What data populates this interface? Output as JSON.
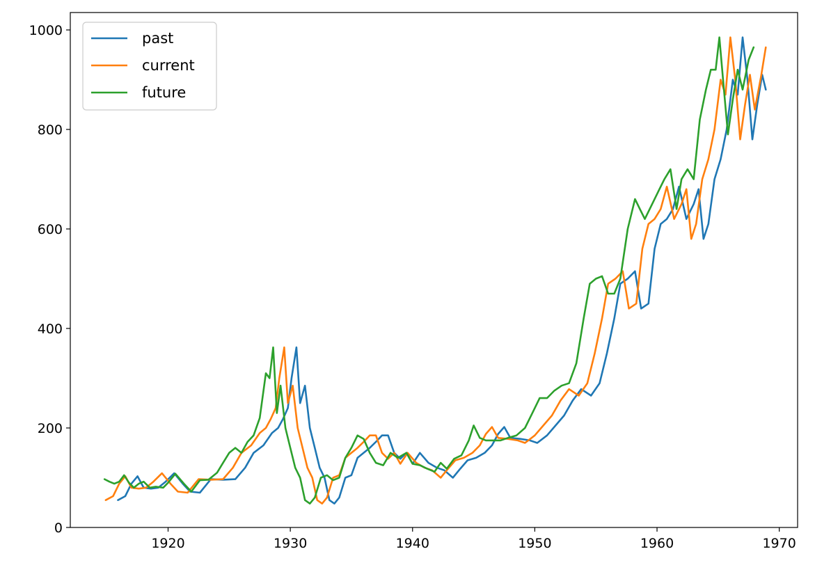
{
  "chart_data": {
    "type": "line",
    "title": "",
    "xlabel": "",
    "ylabel": "",
    "xlim": [
      1912,
      1971.5
    ],
    "ylim": [
      0,
      1035
    ],
    "x_ticks": [
      "1920",
      "1930",
      "1940",
      "1950",
      "1960",
      "1970"
    ],
    "y_ticks": [
      "0",
      "200",
      "400",
      "600",
      "800",
      "1000"
    ],
    "grid": false,
    "legend_position": "top-left",
    "series": [
      {
        "name": "past",
        "color": "#1f77b4",
        "points": [
          [
            1915.9,
            55
          ],
          [
            1916.5,
            63
          ],
          [
            1917.0,
            88
          ],
          [
            1917.5,
            103
          ],
          [
            1918.0,
            80
          ],
          [
            1918.6,
            78
          ],
          [
            1919.2,
            80
          ],
          [
            1919.8,
            92
          ],
          [
            1920.5,
            109
          ],
          [
            1921.2,
            88
          ],
          [
            1921.8,
            72
          ],
          [
            1922.6,
            70
          ],
          [
            1923.5,
            97
          ],
          [
            1924.5,
            96
          ],
          [
            1925.5,
            97
          ],
          [
            1926.3,
            120
          ],
          [
            1927.0,
            150
          ],
          [
            1927.8,
            165
          ],
          [
            1928.5,
            190
          ],
          [
            1929.0,
            200
          ],
          [
            1929.4,
            218
          ],
          [
            1929.8,
            240
          ],
          [
            1930.1,
            300
          ],
          [
            1930.5,
            362
          ],
          [
            1930.8,
            250
          ],
          [
            1931.2,
            285
          ],
          [
            1931.6,
            200
          ],
          [
            1932.0,
            160
          ],
          [
            1932.4,
            120
          ],
          [
            1932.8,
            100
          ],
          [
            1933.2,
            55
          ],
          [
            1933.6,
            48
          ],
          [
            1934.0,
            60
          ],
          [
            1934.5,
            100
          ],
          [
            1935.0,
            105
          ],
          [
            1935.5,
            140
          ],
          [
            1936.0,
            150
          ],
          [
            1936.5,
            160
          ],
          [
            1937.0,
            172
          ],
          [
            1937.5,
            185
          ],
          [
            1938.0,
            185
          ],
          [
            1938.5,
            150
          ],
          [
            1939.0,
            138
          ],
          [
            1939.5,
            150
          ],
          [
            1940.0,
            128
          ],
          [
            1940.6,
            150
          ],
          [
            1941.3,
            130
          ],
          [
            1942.0,
            120
          ],
          [
            1942.6,
            115
          ],
          [
            1943.3,
            100
          ],
          [
            1943.9,
            118
          ],
          [
            1944.5,
            135
          ],
          [
            1945.2,
            140
          ],
          [
            1945.9,
            150
          ],
          [
            1946.5,
            165
          ],
          [
            1947.0,
            188
          ],
          [
            1947.5,
            202
          ],
          [
            1948.0,
            180
          ],
          [
            1948.8,
            178
          ],
          [
            1949.6,
            175
          ],
          [
            1950.2,
            170
          ],
          [
            1951.0,
            185
          ],
          [
            1951.7,
            205
          ],
          [
            1952.4,
            225
          ],
          [
            1953.1,
            255
          ],
          [
            1953.8,
            278
          ],
          [
            1954.6,
            265
          ],
          [
            1955.3,
            290
          ],
          [
            1955.9,
            350
          ],
          [
            1956.5,
            420
          ],
          [
            1957.0,
            490
          ],
          [
            1957.6,
            500
          ],
          [
            1958.2,
            515
          ],
          [
            1958.7,
            440
          ],
          [
            1959.3,
            450
          ],
          [
            1959.8,
            560
          ],
          [
            1960.3,
            610
          ],
          [
            1960.8,
            620
          ],
          [
            1961.3,
            640
          ],
          [
            1961.8,
            685
          ],
          [
            1962.4,
            620
          ],
          [
            1963.0,
            650
          ],
          [
            1963.4,
            680
          ],
          [
            1963.8,
            580
          ],
          [
            1964.2,
            610
          ],
          [
            1964.7,
            700
          ],
          [
            1965.2,
            740
          ],
          [
            1965.7,
            800
          ],
          [
            1966.2,
            900
          ],
          [
            1966.6,
            870
          ],
          [
            1967.0,
            985
          ],
          [
            1967.4,
            900
          ],
          [
            1967.8,
            780
          ],
          [
            1968.2,
            850
          ],
          [
            1968.6,
            910
          ],
          [
            1968.9,
            880
          ]
        ]
      },
      {
        "name": "current",
        "color": "#ff7f0e",
        "points": [
          [
            1914.9,
            55
          ],
          [
            1915.5,
            63
          ],
          [
            1916.0,
            88
          ],
          [
            1916.5,
            103
          ],
          [
            1917.0,
            80
          ],
          [
            1917.6,
            78
          ],
          [
            1918.2,
            80
          ],
          [
            1918.8,
            92
          ],
          [
            1919.5,
            109
          ],
          [
            1920.2,
            88
          ],
          [
            1920.8,
            72
          ],
          [
            1921.6,
            70
          ],
          [
            1922.5,
            97
          ],
          [
            1923.5,
            96
          ],
          [
            1924.5,
            97
          ],
          [
            1925.3,
            120
          ],
          [
            1926.0,
            150
          ],
          [
            1926.8,
            165
          ],
          [
            1927.5,
            190
          ],
          [
            1928.0,
            200
          ],
          [
            1928.4,
            218
          ],
          [
            1928.8,
            240
          ],
          [
            1929.1,
            300
          ],
          [
            1929.5,
            362
          ],
          [
            1929.8,
            250
          ],
          [
            1930.2,
            285
          ],
          [
            1930.6,
            200
          ],
          [
            1931.0,
            160
          ],
          [
            1931.4,
            120
          ],
          [
            1931.8,
            100
          ],
          [
            1932.2,
            55
          ],
          [
            1932.6,
            48
          ],
          [
            1933.0,
            60
          ],
          [
            1933.5,
            100
          ],
          [
            1934.0,
            105
          ],
          [
            1934.5,
            140
          ],
          [
            1935.0,
            150
          ],
          [
            1935.5,
            160
          ],
          [
            1936.0,
            172
          ],
          [
            1936.5,
            185
          ],
          [
            1937.0,
            185
          ],
          [
            1937.5,
            150
          ],
          [
            1938.0,
            138
          ],
          [
            1938.5,
            150
          ],
          [
            1939.0,
            128
          ],
          [
            1939.6,
            150
          ],
          [
            1940.3,
            130
          ],
          [
            1941.0,
            120
          ],
          [
            1941.6,
            115
          ],
          [
            1942.3,
            100
          ],
          [
            1942.9,
            118
          ],
          [
            1943.5,
            135
          ],
          [
            1944.2,
            140
          ],
          [
            1944.9,
            150
          ],
          [
            1945.5,
            165
          ],
          [
            1946.0,
            188
          ],
          [
            1946.5,
            202
          ],
          [
            1947.0,
            180
          ],
          [
            1947.8,
            178
          ],
          [
            1948.6,
            175
          ],
          [
            1949.2,
            170
          ],
          [
            1950.0,
            185
          ],
          [
            1950.7,
            205
          ],
          [
            1951.4,
            225
          ],
          [
            1952.1,
            255
          ],
          [
            1952.8,
            278
          ],
          [
            1953.6,
            265
          ],
          [
            1954.3,
            290
          ],
          [
            1954.9,
            350
          ],
          [
            1955.5,
            420
          ],
          [
            1956.0,
            490
          ],
          [
            1956.6,
            500
          ],
          [
            1957.2,
            515
          ],
          [
            1957.7,
            440
          ],
          [
            1958.3,
            450
          ],
          [
            1958.8,
            560
          ],
          [
            1959.3,
            610
          ],
          [
            1959.8,
            620
          ],
          [
            1960.3,
            640
          ],
          [
            1960.8,
            685
          ],
          [
            1961.4,
            620
          ],
          [
            1962.0,
            650
          ],
          [
            1962.4,
            680
          ],
          [
            1962.8,
            580
          ],
          [
            1963.2,
            610
          ],
          [
            1963.7,
            700
          ],
          [
            1964.2,
            740
          ],
          [
            1964.7,
            800
          ],
          [
            1965.2,
            900
          ],
          [
            1965.6,
            870
          ],
          [
            1966.0,
            985
          ],
          [
            1966.4,
            900
          ],
          [
            1966.8,
            780
          ],
          [
            1967.2,
            850
          ],
          [
            1967.6,
            910
          ],
          [
            1968.0,
            840
          ],
          [
            1968.5,
            905
          ],
          [
            1968.9,
            965
          ]
        ]
      },
      {
        "name": "future",
        "color": "#2ca02c",
        "points": [
          [
            1914.8,
            97
          ],
          [
            1915.2,
            92
          ],
          [
            1915.6,
            88
          ],
          [
            1916.0,
            92
          ],
          [
            1916.4,
            105
          ],
          [
            1916.8,
            90
          ],
          [
            1917.2,
            80
          ],
          [
            1917.6,
            88
          ],
          [
            1918.0,
            92
          ],
          [
            1918.5,
            80
          ],
          [
            1919.0,
            82
          ],
          [
            1919.6,
            80
          ],
          [
            1920.0,
            90
          ],
          [
            1920.6,
            108
          ],
          [
            1921.3,
            88
          ],
          [
            1921.9,
            72
          ],
          [
            1922.6,
            95
          ],
          [
            1923.3,
            96
          ],
          [
            1924.0,
            110
          ],
          [
            1924.5,
            130
          ],
          [
            1925.0,
            150
          ],
          [
            1925.5,
            160
          ],
          [
            1926.0,
            150
          ],
          [
            1926.5,
            172
          ],
          [
            1927.0,
            185
          ],
          [
            1927.5,
            220
          ],
          [
            1928.0,
            310
          ],
          [
            1928.3,
            300
          ],
          [
            1928.6,
            362
          ],
          [
            1928.9,
            230
          ],
          [
            1929.2,
            285
          ],
          [
            1929.6,
            200
          ],
          [
            1930.0,
            160
          ],
          [
            1930.4,
            120
          ],
          [
            1930.8,
            100
          ],
          [
            1931.2,
            55
          ],
          [
            1931.6,
            48
          ],
          [
            1932.0,
            60
          ],
          [
            1932.5,
            100
          ],
          [
            1933.0,
            105
          ],
          [
            1933.5,
            95
          ],
          [
            1934.0,
            100
          ],
          [
            1934.5,
            140
          ],
          [
            1935.0,
            160
          ],
          [
            1935.5,
            185
          ],
          [
            1936.0,
            178
          ],
          [
            1936.5,
            150
          ],
          [
            1937.0,
            130
          ],
          [
            1937.6,
            125
          ],
          [
            1938.2,
            150
          ],
          [
            1938.8,
            140
          ],
          [
            1939.5,
            150
          ],
          [
            1940.0,
            128
          ],
          [
            1940.6,
            125
          ],
          [
            1941.2,
            118
          ],
          [
            1941.8,
            112
          ],
          [
            1942.3,
            130
          ],
          [
            1942.8,
            118
          ],
          [
            1943.4,
            138
          ],
          [
            1944.0,
            145
          ],
          [
            1944.6,
            175
          ],
          [
            1945.0,
            205
          ],
          [
            1945.5,
            180
          ],
          [
            1946.0,
            175
          ],
          [
            1946.6,
            175
          ],
          [
            1947.2,
            175
          ],
          [
            1947.8,
            180
          ],
          [
            1948.5,
            185
          ],
          [
            1949.2,
            200
          ],
          [
            1949.8,
            230
          ],
          [
            1950.4,
            260
          ],
          [
            1951.0,
            260
          ],
          [
            1951.6,
            275
          ],
          [
            1952.2,
            285
          ],
          [
            1952.8,
            290
          ],
          [
            1953.4,
            330
          ],
          [
            1954.0,
            420
          ],
          [
            1954.5,
            490
          ],
          [
            1955.0,
            500
          ],
          [
            1955.5,
            505
          ],
          [
            1956.0,
            470
          ],
          [
            1956.5,
            470
          ],
          [
            1957.0,
            500
          ],
          [
            1957.6,
            600
          ],
          [
            1958.2,
            660
          ],
          [
            1958.6,
            640
          ],
          [
            1959.0,
            620
          ],
          [
            1959.6,
            650
          ],
          [
            1960.2,
            680
          ],
          [
            1960.6,
            700
          ],
          [
            1961.1,
            720
          ],
          [
            1961.6,
            640
          ],
          [
            1962.0,
            700
          ],
          [
            1962.5,
            720
          ],
          [
            1963.0,
            700
          ],
          [
            1963.5,
            820
          ],
          [
            1964.0,
            880
          ],
          [
            1964.4,
            920
          ],
          [
            1964.8,
            920
          ],
          [
            1965.1,
            985
          ],
          [
            1965.4,
            900
          ],
          [
            1965.8,
            790
          ],
          [
            1966.2,
            860
          ],
          [
            1966.6,
            920
          ],
          [
            1967.0,
            880
          ],
          [
            1967.5,
            940
          ],
          [
            1967.9,
            965
          ]
        ]
      }
    ]
  }
}
